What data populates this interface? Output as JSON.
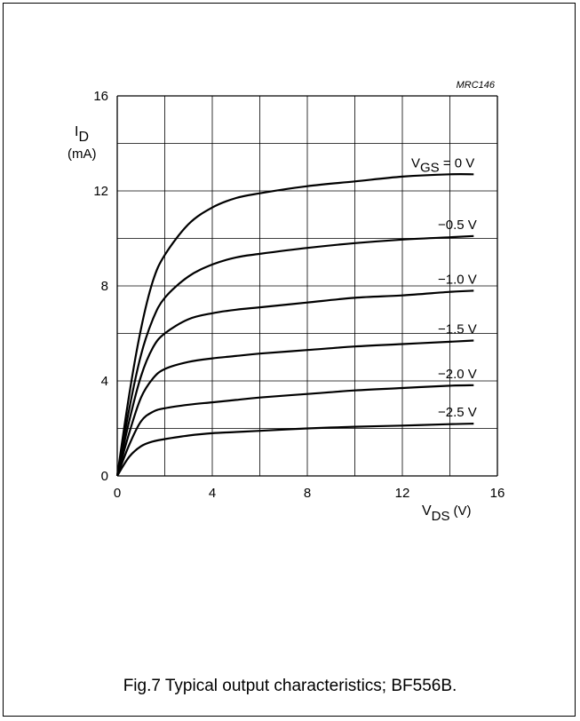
{
  "chart_data": {
    "type": "line",
    "code": "MRC146",
    "ylabel": "I",
    "ylabel_sub": "D",
    "yunit": "(mA)",
    "xlabel": "V",
    "xlabel_sub": "DS",
    "xunit": "(V)",
    "xlim": [
      0,
      16
    ],
    "ylim": [
      0,
      16
    ],
    "x_ticks": [
      "0",
      "4",
      "8",
      "12",
      "16"
    ],
    "y_ticks": [
      "0",
      "4",
      "8",
      "12",
      "16"
    ],
    "grid": true,
    "series": [
      {
        "name": "V_GS = 0 V",
        "x": [
          0,
          0.5,
          1,
          1.5,
          2,
          3,
          4,
          5,
          6,
          8,
          10,
          12,
          14,
          15
        ],
        "y": [
          0,
          3.4,
          6.2,
          8.2,
          9.3,
          10.6,
          11.3,
          11.7,
          11.9,
          12.2,
          12.4,
          12.6,
          12.7,
          12.7
        ]
      },
      {
        "name": "−0.5 V",
        "x": [
          0,
          0.5,
          1,
          1.5,
          2,
          3,
          4,
          5,
          6,
          8,
          10,
          12,
          14,
          15
        ],
        "y": [
          0,
          2.8,
          5.1,
          6.6,
          7.5,
          8.4,
          8.9,
          9.2,
          9.35,
          9.6,
          9.8,
          9.95,
          10.05,
          10.1
        ]
      },
      {
        "name": "−1.0 V",
        "x": [
          0,
          0.5,
          1,
          1.5,
          2,
          3,
          4,
          5,
          6,
          8,
          10,
          12,
          14,
          15
        ],
        "y": [
          0,
          2.3,
          4.2,
          5.4,
          6.0,
          6.6,
          6.85,
          7.0,
          7.1,
          7.3,
          7.5,
          7.6,
          7.75,
          7.8
        ]
      },
      {
        "name": "−1.5 V",
        "x": [
          0,
          0.5,
          1,
          1.5,
          2,
          3,
          4,
          5,
          6,
          8,
          10,
          12,
          14,
          15
        ],
        "y": [
          0,
          1.8,
          3.3,
          4.1,
          4.5,
          4.8,
          4.95,
          5.05,
          5.15,
          5.3,
          5.45,
          5.55,
          5.65,
          5.7
        ]
      },
      {
        "name": "−2.0 V",
        "x": [
          0,
          0.5,
          1,
          1.5,
          2,
          3,
          4,
          5,
          6,
          8,
          10,
          12,
          14,
          15
        ],
        "y": [
          0,
          1.3,
          2.3,
          2.7,
          2.85,
          3.0,
          3.1,
          3.2,
          3.3,
          3.45,
          3.6,
          3.7,
          3.8,
          3.82
        ]
      },
      {
        "name": "−2.5 V",
        "x": [
          0,
          0.5,
          1,
          1.5,
          2,
          3,
          4,
          5,
          6,
          8,
          10,
          12,
          14,
          15
        ],
        "y": [
          0,
          0.8,
          1.25,
          1.45,
          1.55,
          1.7,
          1.8,
          1.85,
          1.9,
          2.0,
          2.07,
          2.12,
          2.18,
          2.2
        ]
      }
    ],
    "curve_labels": [
      {
        "main": "V",
        "sub": "GS",
        "rest": " = 0 V"
      },
      {
        "main": "−0.5 V"
      },
      {
        "main": "−1.0 V"
      },
      {
        "main": "−1.5 V"
      },
      {
        "main": "−2.0 V"
      },
      {
        "main": "−2.5 V"
      }
    ]
  },
  "caption": "Fig.7  Typical output characteristics; BF556B."
}
